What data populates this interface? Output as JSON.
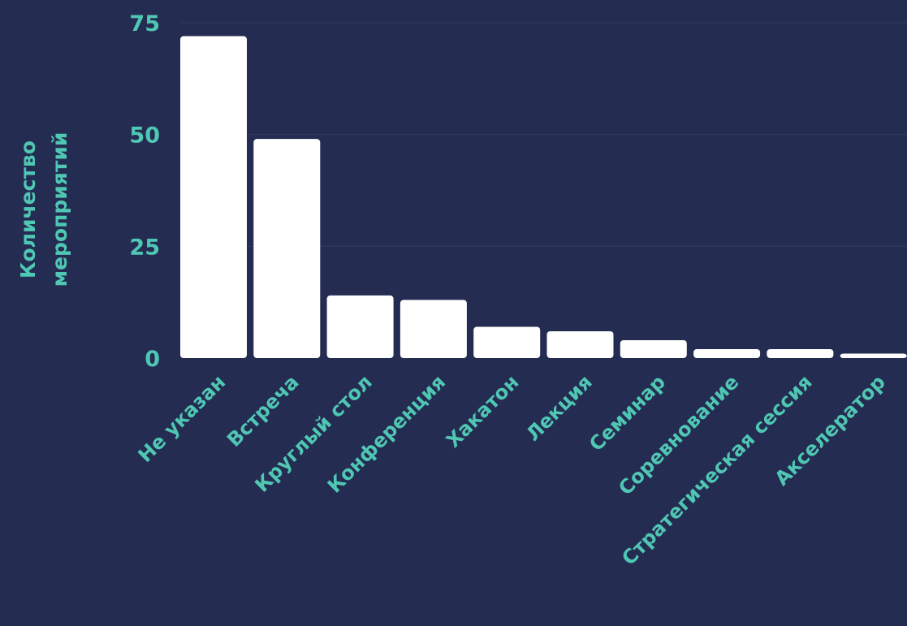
{
  "chart_data": {
    "type": "bar",
    "ylabel_lines": [
      "Количество",
      "мероприятий"
    ],
    "categories": [
      "Не указан",
      "Встреча",
      "Круглый стол",
      "Конференция",
      "Хакатон",
      "Лекция",
      "Семинар",
      "Соревнование",
      "Стратегическая сессия",
      "Акселератор"
    ],
    "values": [
      72,
      49,
      14,
      13,
      7,
      6,
      4,
      2,
      2,
      1
    ],
    "ylim": [
      0,
      75
    ],
    "yticks": [
      0,
      25,
      50,
      75
    ],
    "grid": true,
    "colors": {
      "background": "#242c52",
      "bar": "#ffffff",
      "text": "#4fc7b3"
    }
  }
}
